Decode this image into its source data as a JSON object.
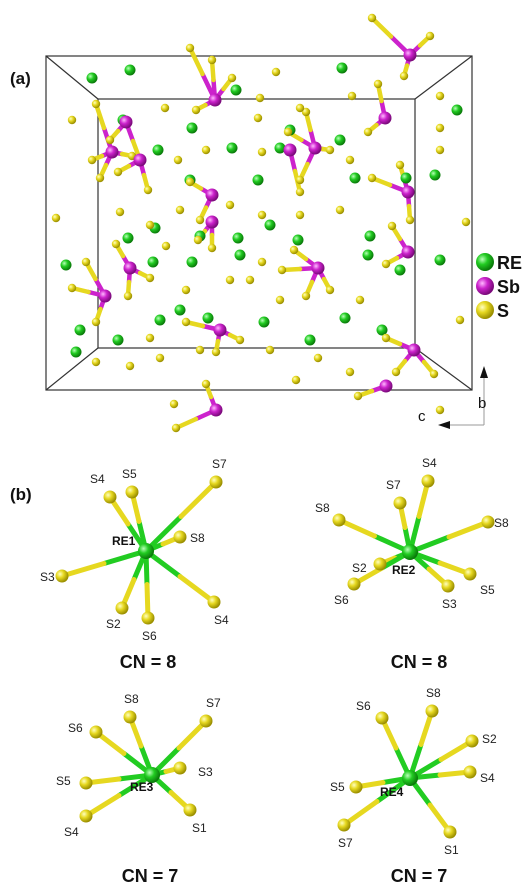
{
  "panels": {
    "a": "(a)",
    "b": "(b)"
  },
  "legend": [
    {
      "label": "RE",
      "color": "#22cc22"
    },
    {
      "label": "Sb",
      "color": "#cc22cc"
    },
    {
      "label": "S",
      "color": "#e6d820"
    }
  ],
  "axes": {
    "b": "b",
    "c": "c"
  },
  "colors": {
    "RE": "#22cc22",
    "Sb": "#cc22cc",
    "S": "#e6d820",
    "box": "#333333"
  },
  "polyhedra": [
    {
      "center": "RE1",
      "cn": "CN = 8",
      "ligands": [
        "S4",
        "S5",
        "S7",
        "S8",
        "S3",
        "S2",
        "S6",
        "S4"
      ]
    },
    {
      "center": "RE2",
      "cn": "CN = 8",
      "ligands": [
        "S4",
        "S7",
        "S8",
        "S8",
        "S2",
        "S6",
        "S3",
        "S5"
      ]
    },
    {
      "center": "RE3",
      "cn": "CN = 7",
      "ligands": [
        "S8",
        "S6",
        "S7",
        "S5",
        "S3",
        "S4",
        "S1"
      ]
    },
    {
      "center": "RE4",
      "cn": "CN = 7",
      "ligands": [
        "S6",
        "S8",
        "S2",
        "S5",
        "S4",
        "S7",
        "S1"
      ]
    }
  ]
}
